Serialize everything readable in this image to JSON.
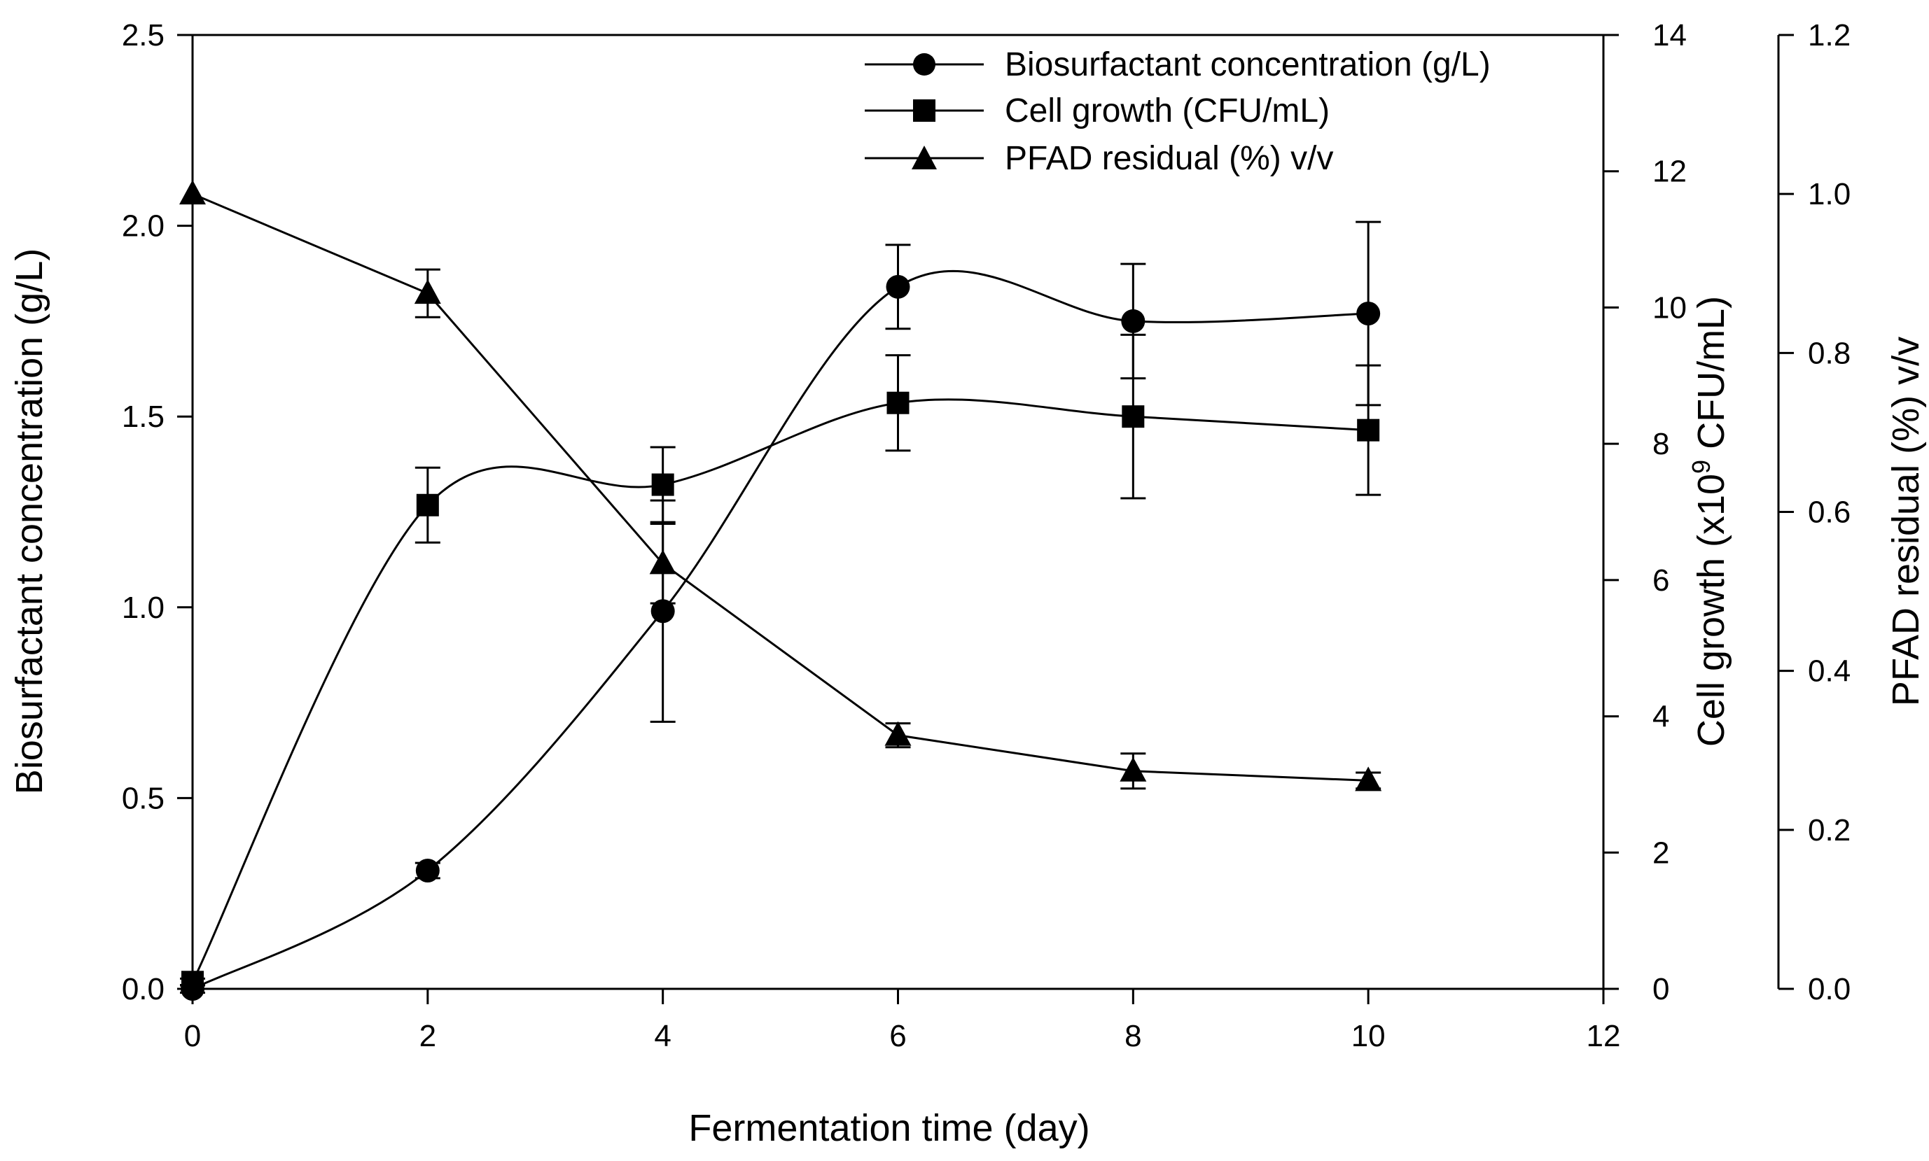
{
  "chart_data": {
    "type": "line",
    "xlabel": "Fermentation time (day)",
    "xlim": [
      0,
      12
    ],
    "xticks": [
      0,
      2,
      4,
      6,
      8,
      10,
      12
    ],
    "x": [
      0,
      2,
      4,
      6,
      8,
      10
    ],
    "axes": {
      "left": {
        "label": "Biosurfactant concentration (g/L)",
        "lim": [
          0,
          2.5
        ],
        "ticks": [
          "0.0",
          "0.5",
          "1.0",
          "1.5",
          "2.0",
          "2.5"
        ]
      },
      "right1": {
        "label_prefix": "Cell growth (x10",
        "label_sup": "9",
        "label_suffix": " CFU/mL)",
        "lim": [
          0,
          14
        ],
        "ticks": [
          "0",
          "2",
          "4",
          "6",
          "8",
          "10",
          "12",
          "14"
        ]
      },
      "right2": {
        "label": "PFAD residual (%) v/v",
        "lim": [
          0,
          1.2
        ],
        "ticks": [
          "0.0",
          "0.2",
          "0.4",
          "0.6",
          "0.8",
          "1.0",
          "1.2"
        ]
      }
    },
    "series": [
      {
        "name": "Biosurfactant concentration (g/L)",
        "axis": "left",
        "marker": "circle",
        "values": [
          0.0,
          0.31,
          0.99,
          1.84,
          1.75,
          1.77
        ],
        "errors": [
          0.01,
          0.02,
          0.29,
          0.11,
          0.15,
          0.24
        ]
      },
      {
        "name": "Cell growth (CFU/mL)",
        "axis": "right1",
        "marker": "square",
        "values": [
          0.1,
          7.1,
          7.4,
          8.6,
          8.4,
          8.2
        ],
        "errors": [
          0.05,
          0.55,
          0.55,
          0.7,
          1.2,
          0.95
        ]
      },
      {
        "name": "PFAD residual (%) v/v",
        "axis": "right2",
        "marker": "triangle",
        "values": [
          1.0,
          0.875,
          0.535,
          0.319,
          0.274,
          0.262
        ],
        "errors": [
          0.0,
          0.03,
          0.05,
          0.015,
          0.022,
          0.01
        ]
      }
    ],
    "legend_position": "top-right"
  }
}
